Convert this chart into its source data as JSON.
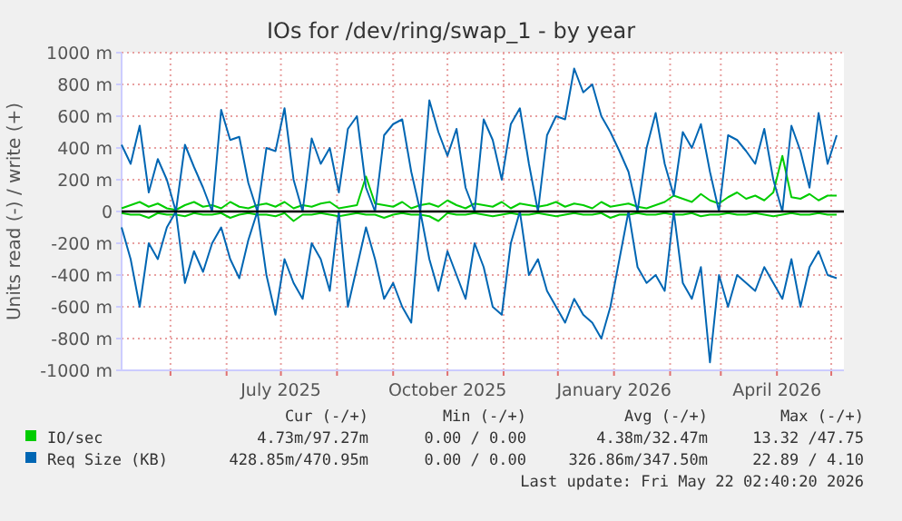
{
  "chart_data": {
    "type": "line",
    "title": "IOs for /dev/ring/swap_1 - by year",
    "ylabel": "Units read (-) / write (+)",
    "x": [
      "2025-04-04",
      "2025-04-09",
      "2025-04-14",
      "2025-04-19",
      "2025-04-24",
      "2025-04-29",
      "2025-05-04",
      "2025-05-09",
      "2025-05-14",
      "2025-05-19",
      "2025-05-24",
      "2025-05-29",
      "2025-06-03",
      "2025-06-08",
      "2025-06-13",
      "2025-06-18",
      "2025-06-23",
      "2025-06-28",
      "2025-07-03",
      "2025-07-08",
      "2025-07-13",
      "2025-07-18",
      "2025-07-23",
      "2025-07-28",
      "2025-08-02",
      "2025-08-07",
      "2025-08-12",
      "2025-08-17",
      "2025-08-22",
      "2025-08-27",
      "2025-09-01",
      "2025-09-06",
      "2025-09-11",
      "2025-09-16",
      "2025-09-21",
      "2025-09-26",
      "2025-10-01",
      "2025-10-06",
      "2025-10-11",
      "2025-10-16",
      "2025-10-21",
      "2025-10-26",
      "2025-10-31",
      "2025-11-05",
      "2025-11-10",
      "2025-11-15",
      "2025-11-20",
      "2025-11-25",
      "2025-11-30",
      "2025-12-05",
      "2025-12-10",
      "2025-12-15",
      "2025-12-20",
      "2025-12-25",
      "2025-12-30",
      "2026-01-04",
      "2026-01-09",
      "2026-01-14",
      "2026-01-19",
      "2026-01-24",
      "2026-01-29",
      "2026-02-03",
      "2026-02-08",
      "2026-02-13",
      "2026-02-18",
      "2026-02-23",
      "2026-02-28",
      "2026-03-05",
      "2026-03-10",
      "2026-03-15",
      "2026-03-20",
      "2026-03-25",
      "2026-03-30",
      "2026-04-04",
      "2026-04-09",
      "2026-04-14",
      "2026-04-19",
      "2026-04-24",
      "2026-04-29",
      "2026-05-04"
    ],
    "series": [
      {
        "color": "#00cc00",
        "values": [
          -10,
          -20,
          -20,
          -40,
          -10,
          -20,
          -20,
          -30,
          -10,
          -20,
          -20,
          -10,
          -40,
          -20,
          -10,
          -20,
          -20,
          -30,
          -10,
          -60,
          -20,
          -20,
          -10,
          -20,
          -30,
          -20,
          -10,
          -20,
          -20,
          -40,
          -20,
          -10,
          -20,
          -20,
          -30,
          -60,
          -10,
          -20,
          -20,
          -10,
          -20,
          -30,
          -20,
          -10,
          -20,
          -20,
          -10,
          -20,
          -30,
          -20,
          -10,
          -20,
          -20,
          -10,
          -40,
          -20,
          -20,
          -10,
          -20,
          -20,
          -10,
          -20,
          -20,
          -10,
          -30,
          -20,
          -20,
          -10,
          -20,
          -20,
          -10,
          -20,
          -30,
          -20,
          -10,
          -20,
          -20,
          -10,
          -20,
          -20
        ]
      },
      {
        "name": "IO/sec",
        "color": "#00cc00",
        "values": [
          20,
          40,
          60,
          30,
          50,
          20,
          10,
          40,
          60,
          30,
          40,
          20,
          60,
          30,
          20,
          40,
          50,
          30,
          60,
          20,
          40,
          30,
          50,
          60,
          20,
          30,
          40,
          220,
          50,
          40,
          30,
          60,
          20,
          40,
          50,
          30,
          70,
          40,
          20,
          50,
          40,
          30,
          60,
          20,
          50,
          40,
          30,
          40,
          60,
          30,
          50,
          40,
          20,
          60,
          30,
          40,
          50,
          30,
          20,
          40,
          60,
          100,
          80,
          60,
          110,
          70,
          50,
          90,
          120,
          80,
          100,
          70,
          120,
          350,
          90,
          80,
          110,
          70,
          100,
          100
        ]
      },
      {
        "color": "#0066b3",
        "values": [
          -100,
          -300,
          -600,
          -200,
          -300,
          -100,
          0,
          -450,
          -250,
          -380,
          -200,
          -100,
          -300,
          -420,
          -180,
          0,
          -400,
          -650,
          -300,
          -450,
          -550,
          -200,
          -300,
          -500,
          0,
          -600,
          -350,
          -100,
          -300,
          -550,
          -450,
          -600,
          -700,
          0,
          -300,
          -500,
          -250,
          -400,
          -550,
          -200,
          -350,
          -600,
          -650,
          -200,
          0,
          -400,
          -300,
          -500,
          -600,
          -700,
          -550,
          -650,
          -700,
          -800,
          -600,
          -300,
          0,
          -350,
          -450,
          -400,
          -500,
          0,
          -450,
          -550,
          -350,
          -950,
          -400,
          -600,
          -400,
          -450,
          -500,
          -350,
          -450,
          -550,
          -300,
          -600,
          -350,
          -250,
          -400,
          -420
        ]
      },
      {
        "name": "Req Size (KB)",
        "color": "#0066b3",
        "values": [
          420,
          300,
          540,
          120,
          330,
          200,
          0,
          420,
          280,
          150,
          0,
          640,
          450,
          470,
          180,
          0,
          400,
          380,
          650,
          200,
          0,
          460,
          300,
          400,
          120,
          520,
          600,
          150,
          0,
          480,
          550,
          580,
          250,
          0,
          700,
          500,
          350,
          520,
          150,
          0,
          580,
          450,
          200,
          550,
          650,
          300,
          0,
          480,
          600,
          580,
          900,
          750,
          800,
          600,
          500,
          380,
          250,
          0,
          400,
          620,
          300,
          100,
          500,
          400,
          550,
          250,
          0,
          480,
          450,
          380,
          300,
          520,
          200,
          0,
          540,
          380,
          150,
          620,
          300,
          480
        ]
      }
    ],
    "xlim": [
      "2025-04-04",
      "2026-05-08"
    ],
    "xticks": [
      {
        "value": "2025-05-01",
        "label": null
      },
      {
        "value": "2025-06-01",
        "label": null
      },
      {
        "value": "2025-07-01",
        "label": "July 2025"
      },
      {
        "value": "2025-08-01",
        "label": null
      },
      {
        "value": "2025-09-01",
        "label": null
      },
      {
        "value": "2025-10-01",
        "label": "October 2025"
      },
      {
        "value": "2025-11-01",
        "label": null
      },
      {
        "value": "2025-12-01",
        "label": null
      },
      {
        "value": "2026-01-01",
        "label": "January 2026"
      },
      {
        "value": "2026-02-01",
        "label": null
      },
      {
        "value": "2026-03-01",
        "label": null
      },
      {
        "value": "2026-04-01",
        "label": "April 2026"
      },
      {
        "value": "2026-05-01",
        "label": null
      }
    ],
    "ylim": [
      -1000,
      1000
    ],
    "yticks": [
      {
        "value": -1000,
        "label": "-1000 m"
      },
      {
        "value": -800,
        "label": "-800 m"
      },
      {
        "value": -600,
        "label": "-600 m"
      },
      {
        "value": -400,
        "label": "-400 m"
      },
      {
        "value": -200,
        "label": "-200 m"
      },
      0,
      {
        "value": 200,
        "label": "200 m"
      },
      {
        "value": 400,
        "label": "400 m"
      },
      {
        "value": 600,
        "label": "600 m"
      },
      {
        "value": 800,
        "label": "800 m"
      },
      {
        "value": 1000,
        "label": "1000 m"
      }
    ],
    "ref_lines": [
      {
        "axis": "y",
        "value": 0,
        "color": "#000000"
      }
    ],
    "grid": true,
    "legend": "bottom",
    "marker": "none",
    "line_style": "solid",
    "annotations": [
      "Cur (-/+)",
      "Min (-/+)",
      "Avg (-/+)",
      "Max (-/+)",
      "4.73m/97.27m",
      "0.00 / 0.00",
      "4.38m/32.47m",
      "13.32 /47.75",
      "428.85m/470.95m",
      "0.00 / 0.00",
      "326.86m/347.50m",
      "22.89 / 4.10",
      "Last update: Fri May 22 02:40:20 2026"
    ]
  }
}
